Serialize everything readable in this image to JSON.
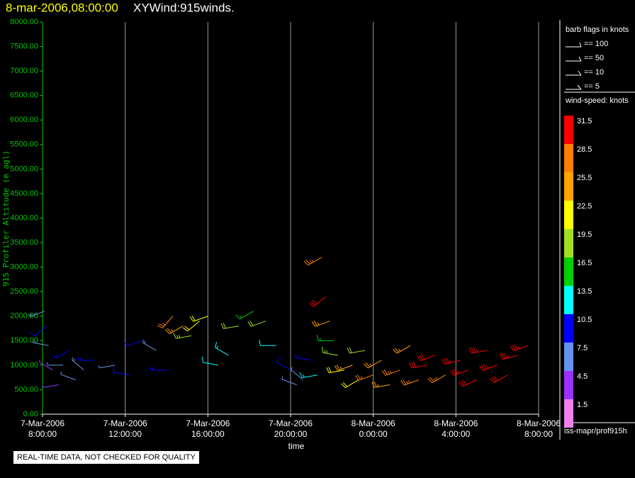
{
  "chart_data": {
    "type": "barb",
    "date_stamp": "8-mar-2006,08:00:00",
    "title": "XYWind:915winds.",
    "y_label": "915 Profiler Altitude (m agl)",
    "x_label": "time",
    "footer": "REAL-TIME DATA, NOT CHECKED FOR QUALITY",
    "source": "iss-mapr/prof915h",
    "xlim": [
      0,
      24
    ],
    "xticks": [
      {
        "value": 0,
        "label": "7-Mar-2006\n8:00:00"
      },
      {
        "value": 4,
        "label": "7-Mar-2006\n12:00:00"
      },
      {
        "value": 8,
        "label": "7-Mar-2006\n16:00:00"
      },
      {
        "value": 12,
        "label": "7-Mar-2006\n20:00:00"
      },
      {
        "value": 16,
        "label": "8-Mar-2006\n0:00:00"
      },
      {
        "value": 20,
        "label": "8-Mar-2006\n4:00:00"
      },
      {
        "value": 24,
        "label": "8-Mar-2006\n8:00:00"
      }
    ],
    "ylim": [
      0,
      8000
    ],
    "yticks": [
      {
        "value": 0,
        "label": "0.00"
      },
      {
        "value": 500,
        "label": "500.00"
      },
      {
        "value": 1000,
        "label": "1000.00"
      },
      {
        "value": 1500,
        "label": "1500.00"
      },
      {
        "value": 2000,
        "label": "2000.00"
      },
      {
        "value": 2500,
        "label": "2500.00"
      },
      {
        "value": 3000,
        "label": "3000.00"
      },
      {
        "value": 3500,
        "label": "3500.00"
      },
      {
        "value": 4000,
        "label": "4000.00"
      },
      {
        "value": 4500,
        "label": "4500.00"
      },
      {
        "value": 5000,
        "label": "5000.00"
      },
      {
        "value": 5500,
        "label": "5500.00"
      },
      {
        "value": 6000,
        "label": "6000.00"
      },
      {
        "value": 6500,
        "label": "6500.00"
      },
      {
        "value": 7000,
        "label": "7000.00"
      },
      {
        "value": 7500,
        "label": "7500.00"
      },
      {
        "value": 8000,
        "label": "8000.00"
      }
    ],
    "grid": true,
    "barb_legend": {
      "title": "barb flags in knots",
      "entries": [
        "== 100",
        "== 50",
        "== 10",
        "== 5"
      ]
    },
    "colorbar": {
      "title": "wind-speed: knots",
      "levels": [
        31.5,
        28.5,
        25.5,
        22.5,
        19.5,
        16.5,
        13.5,
        10.5,
        7.5,
        4.5,
        1.5
      ],
      "colors": [
        "#ff0000",
        "#ff8000",
        "#ffa500",
        "#ffff00",
        "#a0e020",
        "#00d000",
        "#00ffff",
        "#0000ff",
        "#6495ed",
        "#9b30ff",
        "#ee82ee"
      ]
    },
    "barbs": {
      "x": [
        0.1,
        0.2,
        0.3,
        0.5,
        0.8,
        1.0,
        1.3,
        1.6,
        2.0,
        2.5,
        3.5,
        4.2,
        4.8,
        5.5,
        6.0,
        6.3,
        6.8,
        7.2,
        7.6,
        8.0,
        8.5,
        9.0,
        9.5,
        10.2,
        10.8,
        11.3,
        12.0,
        12.3,
        12.6,
        13.0,
        13.3,
        13.5,
        13.7,
        13.9,
        14.1,
        14.3,
        14.6,
        15.0,
        15.3,
        15.6,
        16.0,
        16.4,
        16.8,
        17.3,
        17.8,
        18.2,
        18.6,
        19.0,
        19.5,
        20.2,
        20.6,
        21.0,
        21.5,
        22.0,
        22.5,
        23.0,
        23.5
      ],
      "y": [
        2100,
        1800,
        1400,
        900,
        600,
        1000,
        1300,
        700,
        900,
        1100,
        1000,
        800,
        1500,
        1300,
        900,
        2000,
        1800,
        1600,
        1900,
        2000,
        1000,
        1200,
        1800,
        2100,
        1900,
        1400,
        900,
        600,
        700,
        1100,
        800,
        3200,
        2400,
        1900,
        1500,
        1200,
        900,
        1000,
        700,
        1300,
        800,
        1100,
        600,
        900,
        1400,
        700,
        1000,
        1200,
        800,
        1100,
        900,
        700,
        1300,
        1000,
        800,
        1200,
        1400
      ],
      "speed": [
        8,
        10,
        6,
        5,
        4,
        7,
        9,
        6,
        8,
        9,
        7,
        11,
        10,
        8,
        9,
        27,
        24,
        18,
        22,
        21,
        12,
        14,
        20,
        16,
        20,
        12,
        10,
        7,
        6,
        9,
        13,
        28,
        30,
        26,
        16,
        18,
        21,
        24,
        22,
        20,
        27,
        26,
        25,
        28,
        24,
        28,
        30,
        31,
        29,
        33,
        34,
        32,
        35,
        33,
        32,
        34,
        35
      ],
      "direction": [
        250,
        230,
        280,
        300,
        260,
        270,
        240,
        290,
        310,
        270,
        260,
        280,
        250,
        300,
        270,
        220,
        240,
        260,
        230,
        250,
        280,
        300,
        260,
        240,
        250,
        270,
        300,
        290,
        310,
        280,
        260,
        240,
        230,
        250,
        270,
        280,
        260,
        250,
        240,
        260,
        250,
        240,
        260,
        250,
        240,
        250,
        260,
        250,
        240,
        255,
        250,
        245,
        260,
        250,
        240,
        255,
        250
      ]
    }
  }
}
